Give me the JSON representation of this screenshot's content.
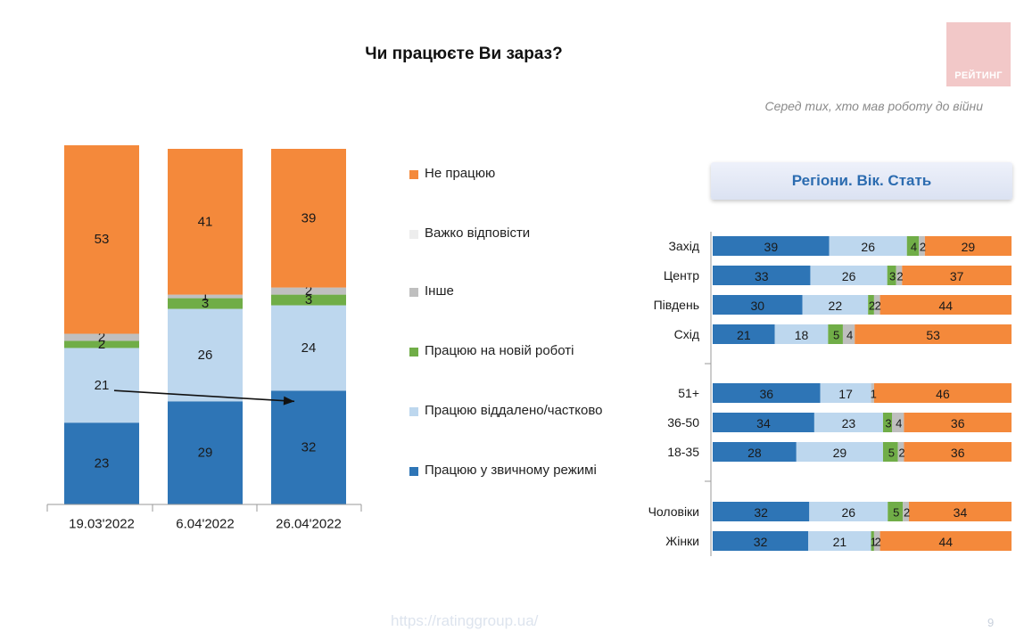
{
  "title": "Чи працюєте Ви зараз?",
  "logo_text": "РЕЙТИНГ",
  "subtitle_note": "Серед тих, хто мав роботу до війни",
  "section_header": "Регіони. Вік. Стать",
  "footer_url": "https://ratinggroup.ua/",
  "page_number": "9",
  "colors": {
    "regular": "#2e75b6",
    "remote": "#bdd7ee",
    "new_job": "#70ad47",
    "other": "#bfbfbf",
    "hard_to_say": "#ededed",
    "not_working": "#f4893b"
  },
  "legend": [
    {
      "label": "Не працюю",
      "color": "#f4893b"
    },
    {
      "label": "Важко відповісти",
      "color": "#ededed"
    },
    {
      "label": "Інше",
      "color": "#bfbfbf"
    },
    {
      "label": "Працюю на новій роботі",
      "color": "#70ad47"
    },
    {
      "label": "Працюю віддалено/частково",
      "color": "#bdd7ee"
    },
    {
      "label": "Працюю у звичному режимі",
      "color": "#2e75b6"
    }
  ],
  "chart_data": [
    {
      "type": "bar",
      "stacked": true,
      "orientation": "vertical",
      "categories": [
        "19.03'2022",
        "6.04'2022",
        "26.04'2022"
      ],
      "series": [
        {
          "name": "Працюю у звичному режимі",
          "values": [
            23,
            29,
            32
          ],
          "color": "#2e75b6"
        },
        {
          "name": "Працюю віддалено/частково",
          "values": [
            21,
            26,
            24
          ],
          "color": "#bdd7ee"
        },
        {
          "name": "Працюю на новій роботі",
          "values": [
            2,
            3,
            3
          ],
          "color": "#70ad47"
        },
        {
          "name": "Інше",
          "values": [
            2,
            1,
            2
          ],
          "color": "#bfbfbf"
        },
        {
          "name": "Важко відповісти",
          "values": [
            0,
            0,
            0
          ],
          "color": "#ededed"
        },
        {
          "name": "Не працюю",
          "values": [
            53,
            41,
            39
          ],
          "color": "#f4893b"
        }
      ],
      "annotation": "arrow from 19.03'2022 to 26.04'2022",
      "legend_position": "right"
    },
    {
      "type": "bar",
      "stacked": true,
      "orientation": "horizontal",
      "categories": [
        "Захід",
        "Центр",
        "Південь",
        "Схід",
        "51+",
        "36-50",
        "18-35",
        "Чоловіки",
        "Жінки"
      ],
      "groups": [
        [
          "Захід",
          "Центр",
          "Південь",
          "Схід"
        ],
        [
          "51+",
          "36-50",
          "18-35"
        ],
        [
          "Чоловіки",
          "Жінки"
        ]
      ],
      "series": [
        {
          "name": "Працюю у звичному режимі",
          "values": [
            39,
            33,
            30,
            21,
            36,
            34,
            28,
            32,
            32
          ],
          "color": "#2e75b6"
        },
        {
          "name": "Працюю віддалено/частково",
          "values": [
            26,
            26,
            22,
            18,
            17,
            23,
            29,
            26,
            21
          ],
          "color": "#bdd7ee"
        },
        {
          "name": "Працюю на новій роботі",
          "values": [
            4,
            3,
            2,
            5,
            0,
            3,
            5,
            5,
            1
          ],
          "color": "#70ad47"
        },
        {
          "name": "Інше",
          "values": [
            2,
            2,
            2,
            4,
            1,
            4,
            2,
            2,
            2
          ],
          "color": "#bfbfbf"
        },
        {
          "name": "Не працюю",
          "values": [
            29,
            37,
            44,
            53,
            46,
            36,
            36,
            34,
            44
          ],
          "color": "#f4893b"
        }
      ]
    }
  ]
}
